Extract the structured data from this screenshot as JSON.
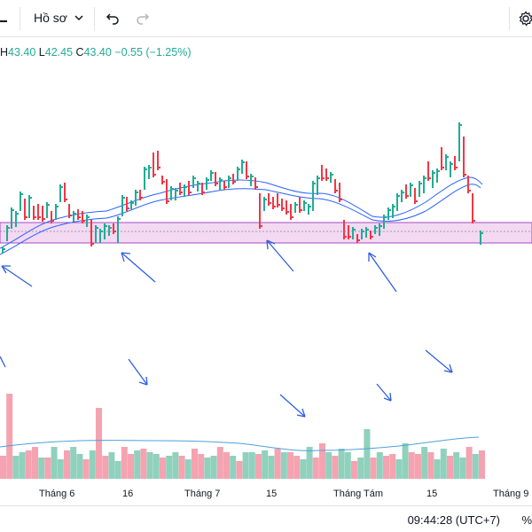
{
  "toolbar": {
    "profile_label": "Hồ sơ",
    "undo_icon": "undo-icon",
    "redo_icon": "redo-icon",
    "settings_icon": "gear-icon"
  },
  "legend": {
    "h_label": "H",
    "h_value": "43.40",
    "l_label": "L",
    "l_value": "42.45",
    "c_label": "C",
    "c_value": "43.40",
    "change": "−0.55 (−1.25%)",
    "up_color": "#22ab94",
    "down_color": "#f23645"
  },
  "x_axis": {
    "labels": [
      "Tháng 6",
      "16",
      "Tháng 7",
      "15",
      "Tháng Tám",
      "15",
      "Tháng 9"
    ]
  },
  "footer": {
    "time": "09:44:28 (UTC+7)",
    "percent_label": "%"
  },
  "colors": {
    "zone_fill": "#f3d9f2",
    "zone_border": "#a74bc4",
    "ma_line": "#2962ff",
    "arrow": "#2f5fdf",
    "vol_up": "#8fd1bd",
    "vol_down": "#f5a3b0",
    "vol_ma": "#4ea0dc"
  }
}
